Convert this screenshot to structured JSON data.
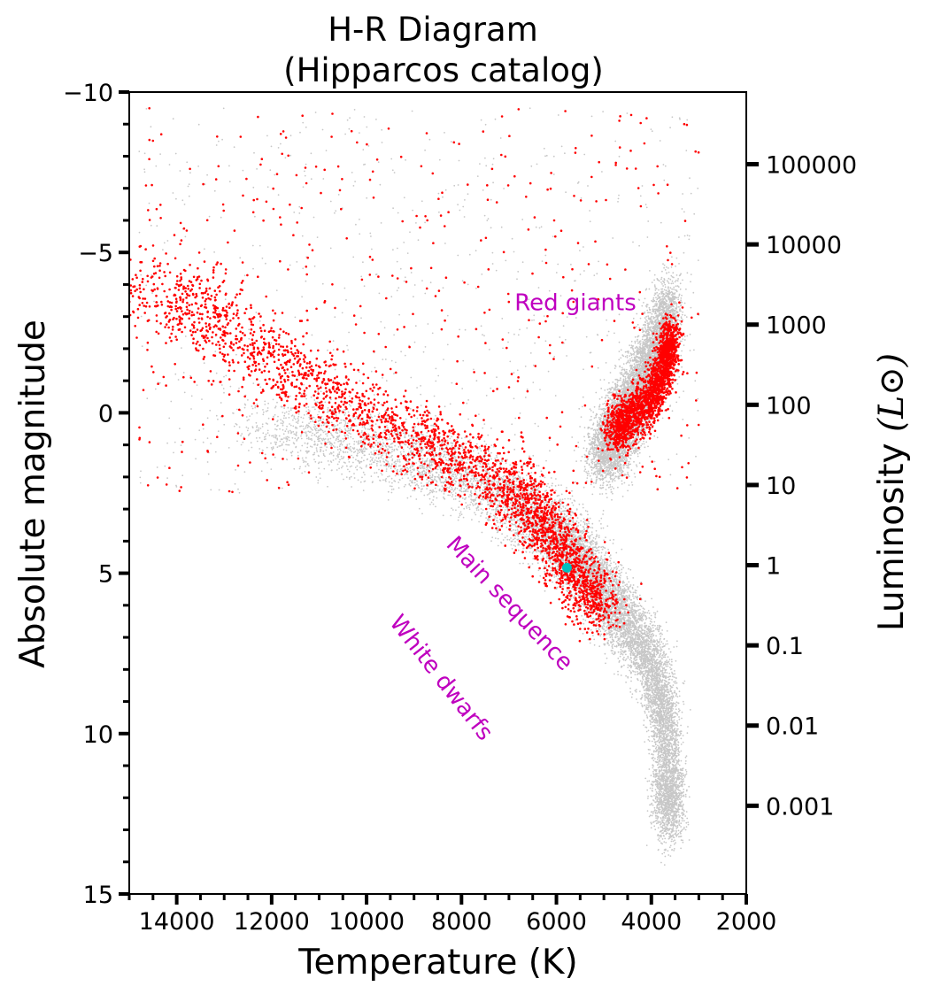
{
  "chart_data": {
    "type": "scatter",
    "title": "H-R Diagram",
    "subtitle": "(Hipparcos catalog)",
    "xlabel": "Temperature (K)",
    "ylabel": "Absolute magnitude",
    "y2label": "Luminosity",
    "y2label_symbol": "(L⊙)",
    "xlim": [
      15000,
      2000
    ],
    "ylim": [
      15,
      -10
    ],
    "x_ticks": [
      14000,
      12000,
      10000,
      8000,
      6000,
      4000,
      2000
    ],
    "x_tick_labels": [
      "14000",
      "12000",
      "10000",
      "8000",
      "6000",
      "4000",
      "2000"
    ],
    "y_ticks": [
      -10,
      -5,
      0,
      5,
      10,
      15
    ],
    "y_tick_labels": [
      "−10",
      "−5",
      "0",
      "5",
      "10",
      "15"
    ],
    "y2_tick_magnitudes": [
      -7.75,
      -5.25,
      -2.75,
      -0.25,
      2.25,
      4.75,
      7.25,
      9.75,
      12.25
    ],
    "y2_tick_labels": [
      "100000",
      "10000",
      "1000",
      "100",
      "10",
      "1",
      "0.1",
      "0.01",
      "0.001"
    ],
    "grid": false,
    "legend": "none",
    "series": [
      {
        "color": "#000000",
        "marker": "tiny dots",
        "approx_points": 18000,
        "ridges": [
          {
            "region": "main sequence",
            "path": [
              [
                12000,
                0.3
              ],
              [
                9000,
                1.4
              ],
              [
                7000,
                2.6
              ],
              [
                6000,
                3.8
              ],
              [
                5500,
                4.6
              ],
              [
                5000,
                5.6
              ],
              [
                4500,
                6.6
              ],
              [
                4000,
                7.8
              ],
              [
                3700,
                9.5
              ],
              [
                3650,
                11.5
              ],
              [
                3600,
                12.8
              ]
            ]
          },
          {
            "region": "red giants",
            "path": [
              [
                5000,
                1.5
              ],
              [
                4800,
                0.8
              ],
              [
                4500,
                0.0
              ],
              [
                4200,
                -1.0
              ],
              [
                3900,
                -2.0
              ],
              [
                3600,
                -3.5
              ]
            ]
          }
        ]
      },
      {
        "color": "#ff0000",
        "marker": "small dots",
        "approx_points": 5000,
        "ridges": [
          {
            "region": "main sequence",
            "path": [
              [
                14500,
                -4.2
              ],
              [
                13000,
                -2.5
              ],
              [
                11000,
                -0.8
              ],
              [
                9000,
                0.8
              ],
              [
                7500,
                1.8
              ],
              [
                6500,
                3.0
              ],
              [
                6000,
                4.0
              ],
              [
                5500,
                5.2
              ],
              [
                5000,
                6.2
              ]
            ]
          },
          {
            "region": "red clump",
            "path": [
              [
                4800,
                0.6
              ],
              [
                4500,
                0.2
              ],
              [
                4000,
                -0.4
              ],
              [
                3700,
                -1.5
              ],
              [
                3600,
                -2.5
              ]
            ]
          }
        ]
      },
      {
        "name": "Sun",
        "color": "#00bfbf",
        "marker": "large dot",
        "points": [
          [
            5778,
            4.83
          ]
        ]
      }
    ],
    "annotations": [
      {
        "text": "Red giants",
        "x": 5600,
        "y": -3.2,
        "rotation": 0
      },
      {
        "text": "Main sequence",
        "x": 7100,
        "y": 6.1,
        "rotation": 47
      },
      {
        "text": "White dwarfs",
        "x": 8550,
        "y": 8.4,
        "rotation": 52
      }
    ],
    "colors": {
      "annotation": "#bf00bf",
      "main": "#000000",
      "highlight": "#ff0000",
      "sun": "#00bfbf"
    }
  }
}
